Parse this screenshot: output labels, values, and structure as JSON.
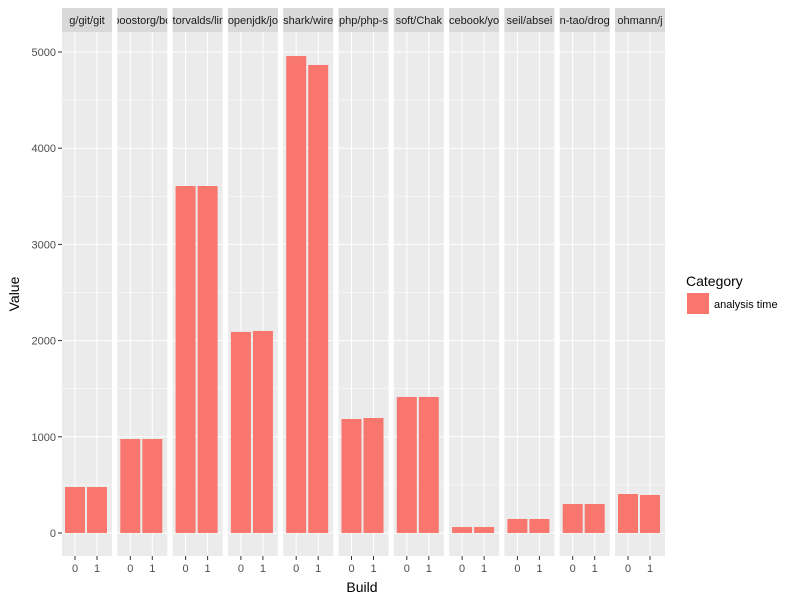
{
  "chart_data": {
    "type": "bar",
    "facets": [
      "g/git/git",
      "boostorg/bo",
      "torvalds/lir",
      "openjdk/jo",
      "shark/wire",
      "php/php-s",
      "soft/Chak",
      "cebook/yo",
      "seil/absei",
      "n-tao/drog",
      "ohmann/j"
    ],
    "categories": [
      "0",
      "1"
    ],
    "series": [
      {
        "name": "analysis time",
        "color": "#F8766D",
        "values": [
          [
            478,
            478
          ],
          [
            977,
            977
          ],
          [
            3607,
            3607
          ],
          [
            2090,
            2100
          ],
          [
            4958,
            4865
          ],
          [
            1185,
            1195
          ],
          [
            1414,
            1414
          ],
          [
            62,
            62
          ],
          [
            146,
            146
          ],
          [
            301,
            301
          ],
          [
            405,
            395
          ]
        ]
      }
    ],
    "xlabel": "Build",
    "ylabel": "Value",
    "ylim": [
      -250,
      5200
    ],
    "yticks": [
      0,
      1000,
      2000,
      3000,
      4000,
      5000
    ],
    "legend": {
      "title": "Category",
      "entries": [
        "analysis time"
      ],
      "position": "right"
    },
    "grid": true
  }
}
